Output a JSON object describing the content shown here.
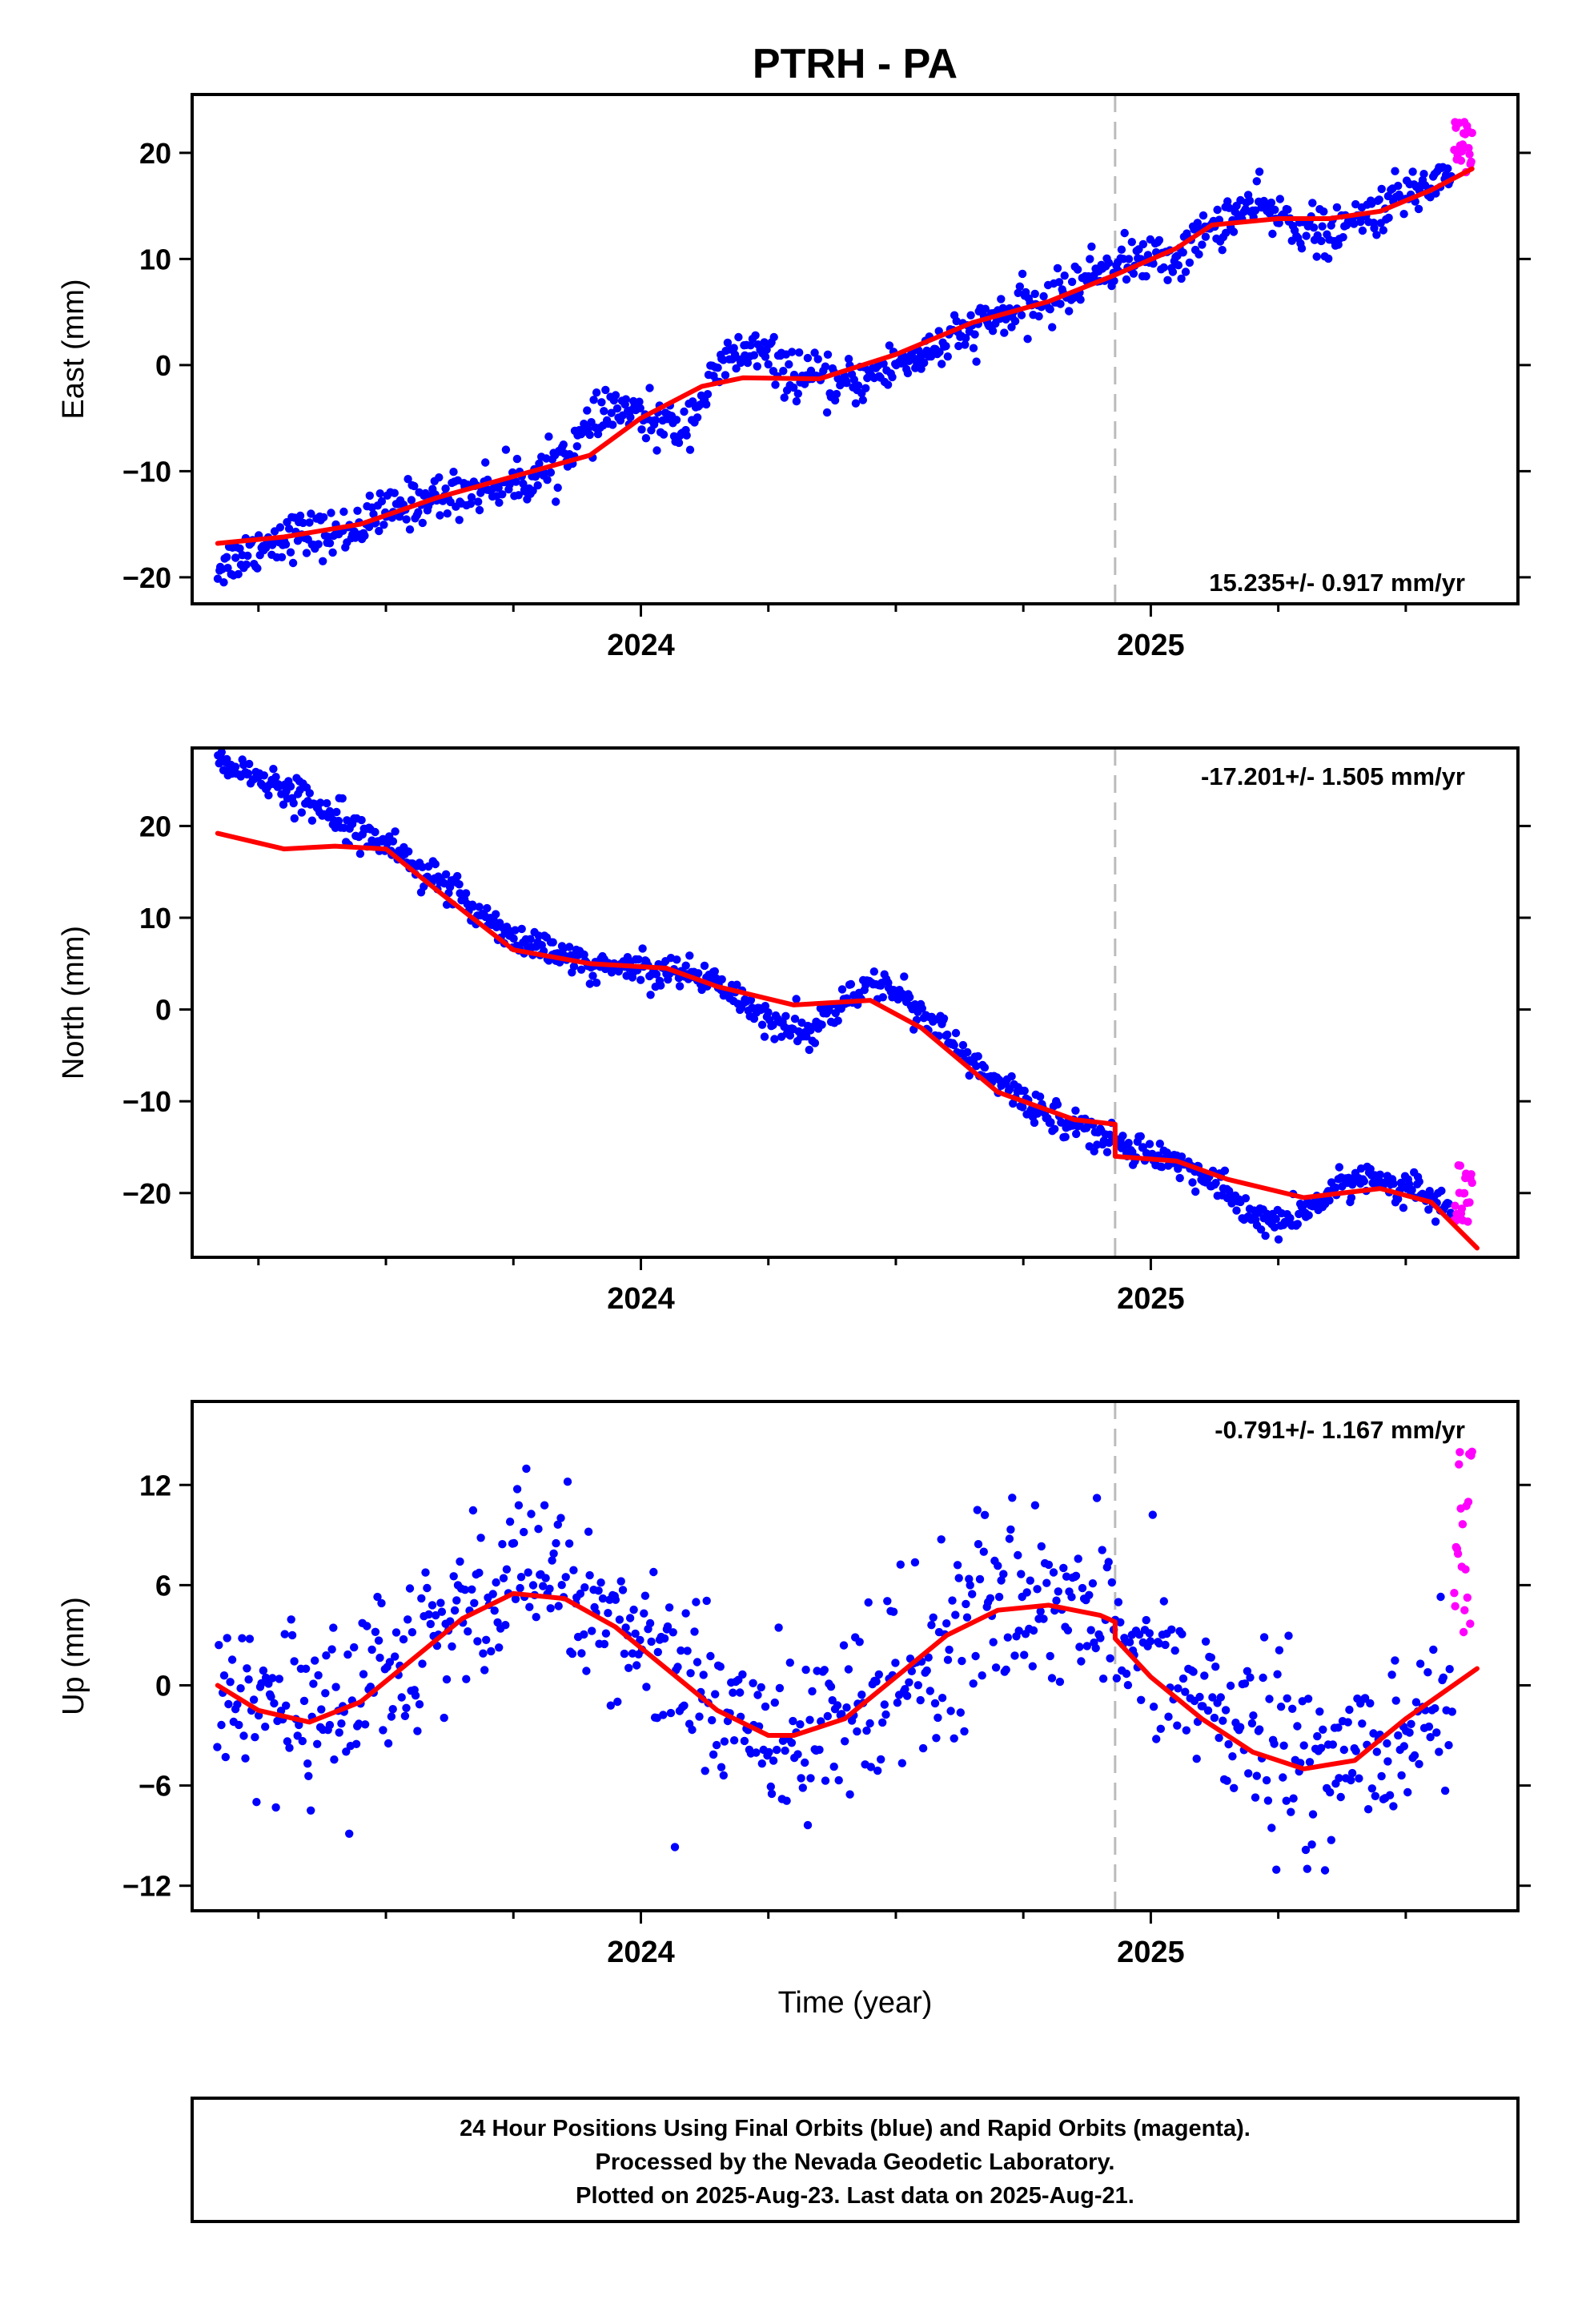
{
  "title": "PTRH - PA",
  "xlabel": "Time (year)",
  "colors": {
    "final": "#0000ff",
    "rapid": "#ff00ff",
    "model": "#ff0000",
    "discontinuity": "#bbbbbb"
  },
  "x_ticks": [
    2024,
    2025
  ],
  "x_tick_labels": [
    "2024",
    "2025"
  ],
  "x_range": [
    2023.12,
    2025.72
  ],
  "discontinuity_year": 2024.93,
  "caption": {
    "line1": "24 Hour Positions Using Final Orbits (blue) and Rapid Orbits (magenta).",
    "line2": "Processed by the Nevada Geodetic Laboratory.",
    "line3": "Plotted on 2025-Aug-23. Last data on 2025-Aug-21."
  },
  "chart_data": [
    {
      "type": "scatter",
      "component": "east",
      "ylabel": "East (mm)",
      "ylim": [
        -22.5,
        25.5
      ],
      "yticks": [
        -20,
        -10,
        0,
        10,
        20
      ],
      "ytick_labels": [
        "−20",
        "−10",
        "0",
        "10",
        "20"
      ],
      "rate_label": "15.235+/- 0.917 mm/yr",
      "rate_position": "bottom-right",
      "model": {
        "x": [
          2023.17,
          2023.3,
          2023.45,
          2023.6,
          2023.75,
          2023.9,
          2024.0,
          2024.12,
          2024.2,
          2024.35,
          2024.5,
          2024.65,
          2024.8,
          2024.93,
          2025.05,
          2025.12,
          2025.25,
          2025.35,
          2025.45,
          2025.55,
          2025.63
        ],
        "y": [
          -16.8,
          -16.2,
          -15.0,
          -12.5,
          -10.5,
          -8.5,
          -5.0,
          -2.0,
          -1.2,
          -1.3,
          1.0,
          4.0,
          6.0,
          8.5,
          11.0,
          13.2,
          13.8,
          13.8,
          14.5,
          16.5,
          18.5
        ]
      },
      "trend_knots": {
        "x": [
          2023.17,
          2023.3,
          2023.4,
          2023.55,
          2023.7,
          2023.8,
          2023.88,
          2023.95,
          2024.0,
          2024.08,
          2024.17,
          2024.22,
          2024.3,
          2024.4,
          2024.5,
          2024.6,
          2024.7,
          2024.8,
          2024.9,
          2024.97,
          2025.05,
          2025.12,
          2025.2,
          2025.28,
          2025.35,
          2025.42,
          2025.5,
          2025.6
        ],
        "y": [
          -19.0,
          -16.0,
          -16.0,
          -13.0,
          -11.5,
          -10.5,
          -7.0,
          -4.0,
          -5.0,
          -6.0,
          0.5,
          1.5,
          -1.0,
          -2.0,
          0.0,
          2.0,
          4.5,
          6.0,
          9.0,
          10.0,
          10.0,
          13.0,
          15.0,
          13.5,
          12.0,
          14.0,
          16.0,
          18.5
        ]
      },
      "noise": 1.1,
      "count": 850,
      "rapid": {
        "x_start": 2025.595,
        "x_end": 2025.63,
        "y_mean": 20.5,
        "spread": 2.5,
        "count": 22
      }
    },
    {
      "type": "scatter",
      "component": "north",
      "ylabel": "North (mm)",
      "ylim": [
        -27,
        28.5
      ],
      "yticks": [
        -20,
        -10,
        0,
        10,
        20
      ],
      "ytick_labels": [
        "−20",
        "−10",
        "0",
        "10",
        "20"
      ],
      "rate_label": "-17.201+/- 1.505 mm/yr",
      "rate_position": "top-right",
      "model": {
        "x": [
          2023.17,
          2023.3,
          2023.4,
          2023.5,
          2023.6,
          2023.75,
          2023.9,
          2024.05,
          2024.15,
          2024.3,
          2024.45,
          2024.55,
          2024.7,
          2024.85,
          2024.93,
          2024.9301,
          2025.05,
          2025.15,
          2025.3,
          2025.45,
          2025.55,
          2025.64
        ],
        "y": [
          19.2,
          17.5,
          17.8,
          17.5,
          13.0,
          6.5,
          5.0,
          4.5,
          2.5,
          0.5,
          1.0,
          -2.0,
          -9.0,
          -12.0,
          -12.5,
          -16.0,
          -16.5,
          -18.5,
          -20.5,
          -19.5,
          -21.0,
          -26.0
        ]
      },
      "trend_knots": {
        "x": [
          2023.17,
          2023.3,
          2023.45,
          2023.6,
          2023.75,
          2023.85,
          2023.95,
          2024.05,
          2024.15,
          2024.25,
          2024.33,
          2024.4,
          2024.48,
          2024.55,
          2024.65,
          2024.75,
          2024.85,
          2024.93,
          2025.0,
          2025.1,
          2025.2,
          2025.27,
          2025.35,
          2025.42,
          2025.5,
          2025.6
        ],
        "y": [
          27.5,
          24.0,
          20.0,
          14.0,
          8.0,
          5.5,
          4.5,
          4.5,
          3.0,
          -1.0,
          -2.5,
          1.0,
          3.0,
          0.0,
          -6.0,
          -10.0,
          -12.5,
          -14.5,
          -15.5,
          -18.0,
          -22.5,
          -23.5,
          -20.0,
          -18.0,
          -19.5,
          -22.0
        ]
      },
      "noise": 0.9,
      "count": 850,
      "rapid": {
        "x_start": 2025.595,
        "x_end": 2025.63,
        "y_mean": -20.0,
        "spread": 3.2,
        "count": 22
      }
    },
    {
      "type": "scatter",
      "component": "up",
      "ylabel": "Up (mm)",
      "ylim": [
        -13.5,
        17
      ],
      "yticks": [
        -12,
        -6,
        0,
        6,
        12
      ],
      "ytick_labels": [
        "−12",
        "−6",
        "0",
        "6",
        "12"
      ],
      "rate_label": "-0.791+/- 1.167 mm/yr",
      "rate_position": "top-right",
      "model": {
        "x": [
          2023.17,
          2023.25,
          2023.35,
          2023.45,
          2023.55,
          2023.65,
          2023.75,
          2023.85,
          2023.95,
          2024.05,
          2024.15,
          2024.25,
          2024.3,
          2024.4,
          2024.5,
          2024.6,
          2024.7,
          2024.8,
          2024.9,
          2024.93,
          2024.9301,
          2025.0,
          2025.1,
          2025.2,
          2025.3,
          2025.4,
          2025.5,
          2025.64
        ],
        "y": [
          0.0,
          -1.5,
          -2.2,
          -1.0,
          1.5,
          4.0,
          5.5,
          5.2,
          3.5,
          1.0,
          -1.5,
          -3.0,
          -3.0,
          -2.0,
          0.5,
          3.0,
          4.5,
          4.8,
          4.2,
          3.8,
          2.8,
          0.5,
          -2.0,
          -4.0,
          -5.0,
          -4.5,
          -2.0,
          1.0
        ]
      },
      "trend_knots": {
        "x": [
          2023.17,
          2023.3,
          2023.45,
          2023.6,
          2023.75,
          2023.9,
          2024.05,
          2024.2,
          2024.3,
          2024.45,
          2024.6,
          2024.75,
          2024.9,
          2025.05,
          2025.2,
          2025.3,
          2025.45,
          2025.6
        ],
        "y": [
          0.0,
          -2.0,
          -0.5,
          2.5,
          6.0,
          5.5,
          2.0,
          -2.0,
          -3.5,
          -1.5,
          2.5,
          5.5,
          4.5,
          0.0,
          -3.0,
          -5.5,
          -3.5,
          -1.0
        ]
      },
      "noise": 2.6,
      "count": 760,
      "rapid": {
        "x_start": 2025.595,
        "x_end": 2025.63,
        "y_mean": 8.5,
        "spread": 5.5,
        "count": 20
      }
    }
  ]
}
